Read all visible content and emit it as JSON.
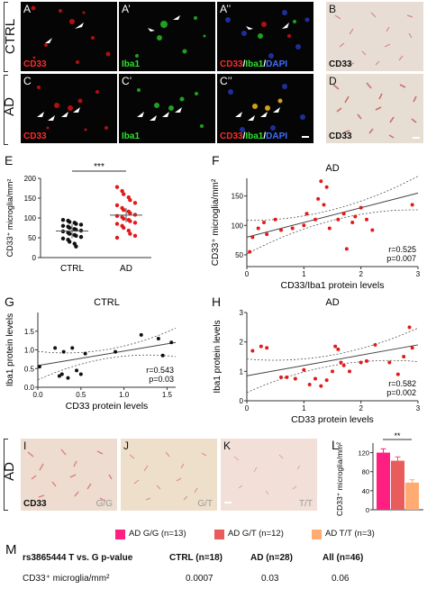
{
  "row_labels": {
    "ctrl": "CTRL",
    "ad": "AD",
    "ad_bottom": "AD"
  },
  "panels": {
    "A": {
      "letter": "A",
      "ch1": "CD33"
    },
    "A1": {
      "letter": "A’",
      "ch1": "Iba1"
    },
    "A2": {
      "letter": "A’’",
      "ch1": "CD33",
      "sep1": "/",
      "ch2": "Iba1",
      "sep2": "/",
      "ch3": "DAPI"
    },
    "B": {
      "letter": "B",
      "ch1": "CD33"
    },
    "C": {
      "letter": "C",
      "ch1": "CD33"
    },
    "C1": {
      "letter": "C’",
      "ch1": "Iba1"
    },
    "C2": {
      "letter": "C’’",
      "ch1": "CD33",
      "sep1": "/",
      "ch2": "Iba1",
      "sep2": "/",
      "ch3": "DAPI"
    },
    "D": {
      "letter": "D",
      "ch1": "CD33"
    },
    "I": {
      "letter": "I",
      "ch1": "CD33",
      "geno": "G/G"
    },
    "J": {
      "letter": "J",
      "geno": "G/T"
    },
    "K": {
      "letter": "K",
      "geno": "T/T"
    }
  },
  "panel_E": {
    "letter": "E",
    "ylabel": "CD33⁺ microglia/mm²",
    "sig": "***",
    "yticks": [
      "0",
      "50",
      "100",
      "150",
      "200"
    ],
    "categories": [
      "CTRL",
      "AD"
    ]
  },
  "panel_F": {
    "letter": "F",
    "title": "AD",
    "ylabel": "CD33⁺ microglia/mm²",
    "xlabel": "CD33/Iba1 protein levels",
    "r": "r=0.525",
    "p": "p=0.007",
    "yticks": [
      "50",
      "100",
      "150"
    ],
    "xticks": [
      "0",
      "1",
      "2",
      "3"
    ]
  },
  "panel_G": {
    "letter": "G",
    "title": "CTRL",
    "ylabel": "Iba1 protein levels",
    "xlabel": "CD33 protein levels",
    "r": "r=0.543",
    "p": "p=0.03",
    "yticks": [
      "0.0",
      "0.5",
      "1.0",
      "1.5"
    ],
    "xticks": [
      "0.0",
      "0.5",
      "1.0",
      "1.5"
    ]
  },
  "panel_H": {
    "letter": "H",
    "title": "AD",
    "ylabel": "Iba1 protein levels",
    "xlabel": "CD33 protein levels",
    "r": "r=0.582",
    "p": "p=0.002",
    "yticks": [
      "0",
      "1",
      "2",
      "3"
    ],
    "xticks": [
      "0",
      "1",
      "2",
      "3"
    ]
  },
  "panel_L": {
    "letter": "L",
    "ylabel": "CD33⁺ microglia/mm²",
    "sig": "**",
    "yticks": [
      "0",
      "40",
      "80",
      "120"
    ]
  },
  "legend": [
    {
      "label": "AD G/G (n=13)",
      "color": "#ff1f80"
    },
    {
      "label": "AD G/T (n=12)",
      "color": "#ea5b5b"
    },
    {
      "label": "AD T/T (n=3)",
      "color": "#ffab72"
    }
  ],
  "panel_M": {
    "letter": "M",
    "headers": [
      "rs3865444 T vs. G p-value",
      "CTRL (n=18)",
      "AD (n=28)",
      "All (n=46)"
    ],
    "row_label": "CD33⁺ microglia/mm²",
    "values": [
      "0.0007",
      "0.03",
      "0.06"
    ]
  },
  "chart_data": [
    {
      "type": "scatter",
      "panel": "E",
      "ylabel": "CD33⁺ microglia/mm²",
      "categories": [
        "CTRL",
        "AD"
      ],
      "ylim": [
        0,
        200
      ],
      "series": [
        {
          "name": "CTRL",
          "mean": 67,
          "values": [
            95,
            93,
            90,
            88,
            85,
            83,
            80,
            78,
            75,
            72,
            70,
            68,
            66,
            63,
            60,
            57,
            55,
            52,
            48,
            45,
            40,
            35,
            28
          ]
        },
        {
          "name": "AD",
          "mean": 107,
          "values": [
            178,
            168,
            160,
            152,
            145,
            138,
            132,
            125,
            120,
            116,
            112,
            108,
            105,
            102,
            98,
            95,
            92,
            88,
            85,
            80,
            75,
            68,
            60,
            55,
            50
          ]
        }
      ]
    },
    {
      "type": "scatter",
      "panel": "F",
      "ylabel": "CD33⁺ microglia/mm²",
      "xlabel": "CD33/Iba1 protein levels",
      "xlim": [
        0,
        3
      ],
      "ylim": [
        30,
        180
      ],
      "x": [
        0.05,
        0.1,
        0.2,
        0.3,
        0.35,
        0.5,
        0.6,
        0.8,
        1.0,
        1.05,
        1.2,
        1.25,
        1.35,
        1.4,
        1.45,
        1.6,
        1.7,
        1.75,
        1.85,
        1.9,
        2.0,
        2.1,
        2.2,
        2.9,
        1.3
      ],
      "y": [
        55,
        80,
        95,
        105,
        85,
        110,
        92,
        95,
        100,
        120,
        110,
        145,
        135,
        165,
        95,
        110,
        120,
        60,
        105,
        115,
        130,
        110,
        92,
        135,
        175
      ],
      "fit": {
        "x": [
          0,
          3
        ],
        "y": [
          80,
          155
        ]
      }
    },
    {
      "type": "scatter",
      "panel": "G",
      "ylabel": "Iba1 protein levels",
      "xlabel": "CD33 protein levels",
      "xlim": [
        0,
        1.6
      ],
      "ylim": [
        0,
        2.0
      ],
      "x": [
        0.02,
        0.2,
        0.25,
        0.28,
        0.3,
        0.35,
        0.4,
        0.45,
        0.5,
        0.55,
        0.9,
        1.2,
        1.4,
        1.45,
        1.55
      ],
      "y": [
        0.55,
        1.05,
        0.3,
        0.35,
        0.95,
        0.25,
        1.05,
        0.45,
        0.35,
        0.9,
        0.95,
        1.4,
        1.3,
        0.85,
        1.2
      ],
      "fit": {
        "x": [
          0,
          1.6
        ],
        "y": [
          0.58,
          1.2
        ]
      }
    },
    {
      "type": "scatter",
      "panel": "H",
      "ylabel": "Iba1 protein levels",
      "xlabel": "CD33 protein levels",
      "xlim": [
        0,
        3
      ],
      "ylim": [
        0,
        3
      ],
      "x": [
        0.1,
        0.25,
        0.35,
        0.6,
        0.7,
        0.85,
        1.0,
        1.2,
        1.3,
        1.4,
        1.5,
        1.6,
        1.65,
        1.7,
        1.8,
        2.0,
        2.1,
        2.25,
        2.5,
        2.65,
        2.75,
        2.85,
        2.9,
        1.55,
        1.1
      ],
      "y": [
        1.7,
        1.85,
        1.8,
        0.8,
        0.8,
        0.75,
        1.05,
        0.75,
        0.5,
        0.7,
        1.0,
        1.75,
        1.3,
        1.2,
        1.0,
        1.3,
        1.35,
        1.9,
        1.3,
        0.9,
        1.5,
        2.5,
        1.8,
        1.85,
        0.55
      ],
      "fit": {
        "x": [
          0,
          3
        ],
        "y": [
          0.85,
          1.9
        ]
      }
    },
    {
      "type": "bar",
      "panel": "L",
      "ylabel": "CD33⁺ microglia/mm²",
      "categories": [
        "AD G/G (n=13)",
        "AD G/T (n=12)",
        "AD T/T (n=3)"
      ],
      "values": [
        120,
        103,
        57
      ],
      "errors": [
        8,
        8,
        6
      ],
      "colors": [
        "#ff1f80",
        "#ea5b5b",
        "#ffab72"
      ],
      "ylim": [
        0,
        140
      ]
    }
  ]
}
